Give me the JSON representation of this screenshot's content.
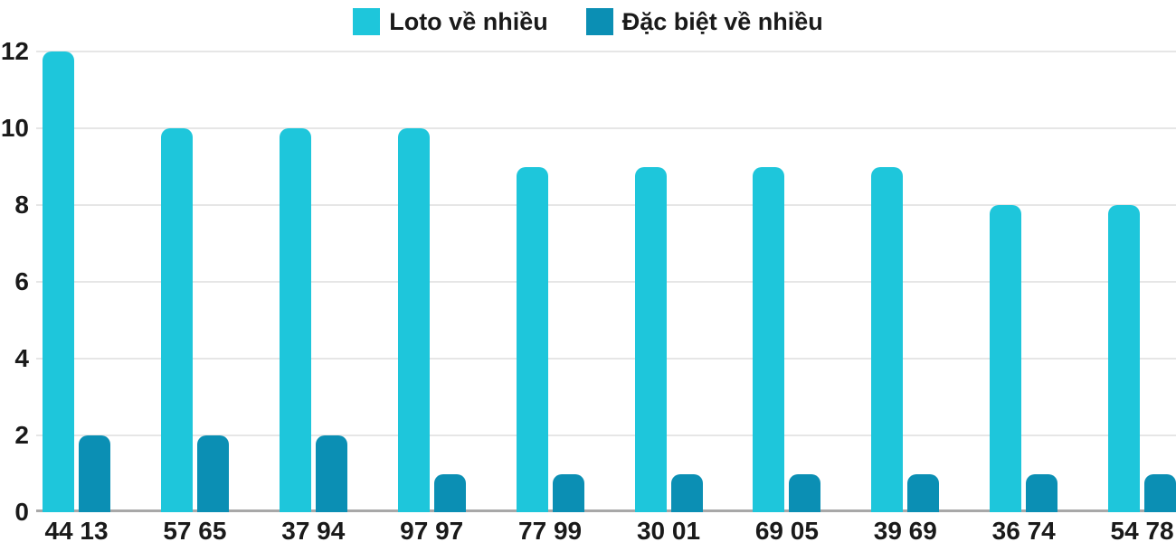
{
  "chart_data": {
    "type": "bar",
    "title": "",
    "xlabel": "",
    "ylabel": "",
    "categories": [
      "44 13",
      "57 65",
      "37 94",
      "97 97",
      "77 99",
      "30 01",
      "69 05",
      "39 69",
      "36 74",
      "54 78"
    ],
    "series": [
      {
        "name": "Loto về nhiều",
        "color": "#1ec6db",
        "values": [
          12,
          10,
          10,
          10,
          9,
          9,
          9,
          9,
          8,
          8
        ]
      },
      {
        "name": "Đặc biệt về nhiều",
        "color": "#0b8fb4",
        "values": [
          2,
          2,
          2,
          1,
          1,
          1,
          1,
          1,
          1,
          1
        ]
      }
    ],
    "yticks": [
      0,
      2,
      4,
      6,
      8,
      10,
      12
    ],
    "ylim": [
      0,
      12
    ],
    "grid": true,
    "legend_position": "top",
    "colors": {
      "gridline": "#e6e6e6",
      "baseline": "#a8a8a8",
      "text": "#1a1a1a",
      "background": "#ffffff"
    }
  }
}
